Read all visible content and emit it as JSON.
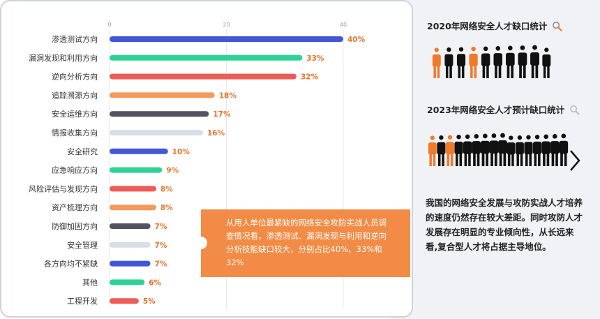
{
  "chart_data": {
    "type": "bar",
    "orientation": "horizontal",
    "categories": [
      "渗透测试方向",
      "漏洞发现和利用方向",
      "逆向分析方向",
      "追踪溯源方向",
      "安全运维方向",
      "情报收集方向",
      "安全研究",
      "应急响应方向",
      "风险评估与发现方向",
      "资产梳理方向",
      "防御加固方向",
      "安全管理",
      "各方向均不紧缺",
      "其他",
      "工程开发"
    ],
    "values": [
      40,
      33,
      32,
      18,
      17,
      16,
      10,
      9,
      8,
      8,
      7,
      7,
      7,
      6,
      5
    ],
    "value_labels": [
      "40%",
      "33%",
      "32%",
      "18%",
      "17%",
      "16%",
      "10%",
      "9%",
      "8%",
      "8%",
      "7%",
      "7%",
      "7%",
      "6%",
      "5%"
    ],
    "bar_colors": [
      "#4257d6",
      "#2ed394",
      "#ef5b57",
      "#f49a5c",
      "#535461",
      "#d9dee8",
      "#4257d6",
      "#2ed394",
      "#ef5b57",
      "#f49a5c",
      "#535461",
      "#d9dee8",
      "#4257d6",
      "#2ed394",
      "#ef5b57"
    ],
    "xlim": [
      0,
      40
    ],
    "ticks": [
      0,
      20,
      40
    ],
    "tick_labels": [
      "0",
      "20",
      "40"
    ],
    "grid": true,
    "value_label_color": "#e8742c"
  },
  "callout": {
    "text": "从用人单位最紧缺的网络安全攻防实战人员调查情况看，渗透测试、漏洞发现与利用和逆向分析技能缺口较大，分别占比40%、33%和32%",
    "color": "#f28b45"
  },
  "right_panel": {
    "title_2020": "2020年网络安全人才缺口统计",
    "title_2023": "2023年网络安全人才预计缺口统计",
    "crowd_2020": [
      "#f07a2a",
      "#111111",
      "#111111",
      "#f07a2a",
      "#111111",
      "#111111",
      "#111111",
      "#111111",
      "#111111",
      "#111111"
    ],
    "crowd_2023": [
      "#f07a2a",
      "#111111",
      "#f07a2a",
      "#111111",
      "#111111",
      "#111111",
      "#111111",
      "#111111",
      "#111111",
      "#111111",
      "#111111",
      "#111111",
      "#111111",
      "#111111",
      "#111111",
      "#111111"
    ],
    "note": "我国的网络安全发展与攻防实战人才培养的速度仍然存在较大差距。同时攻防人才发展存在明显的专业倾向性，从长远来看,复合型人才将占据主导地位。"
  },
  "icons": [
    "magnifier-icon",
    "chevron-right-icon",
    "person-icon"
  ]
}
